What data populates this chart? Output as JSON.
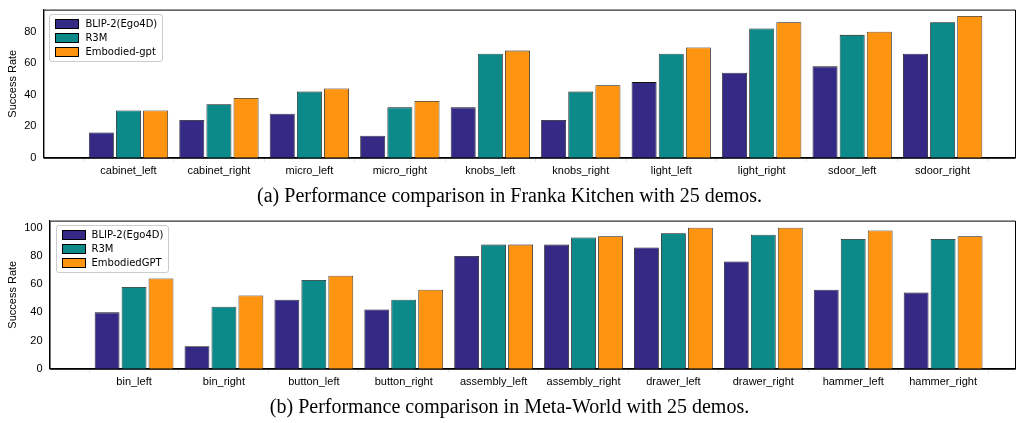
{
  "chart_data": [
    {
      "type": "bar",
      "title": "(a) Performance comparison in Franka Kitchen with 25 demos.",
      "ylabel": "Success Rate",
      "categories": [
        "cabinet_left",
        "cabinet_right",
        "micro_left",
        "micro_right",
        "knobs_left",
        "knobs_right",
        "light_left",
        "light_right",
        "sdoor_left",
        "sdoor_right"
      ],
      "series": [
        {
          "name": "BLIP-2(Ego4D)",
          "color": "#342a85",
          "values": [
            16,
            24,
            28,
            14,
            32,
            24,
            48,
            54,
            58,
            66
          ]
        },
        {
          "name": "R3M",
          "color": "#0c8a8a",
          "values": [
            30,
            34,
            42,
            32,
            66,
            42,
            66,
            82,
            78,
            86
          ]
        },
        {
          "name": "Embodied-gpt",
          "color": "#ff9410",
          "values": [
            30,
            38,
            44,
            36,
            68,
            46,
            70,
            86,
            80,
            90
          ]
        }
      ],
      "ylim": [
        0,
        94
      ],
      "yticks": [
        0,
        20,
        40,
        60,
        80
      ],
      "grid": false,
      "legend": "top left"
    },
    {
      "type": "bar",
      "title": "(b) Performance comparison in Meta-World with 25 demos.",
      "ylabel": "Success Rate",
      "categories": [
        "bin_left",
        "bin_right",
        "button_left",
        "button_right",
        "assembly_left",
        "assembly_right",
        "drawer_left",
        "drawer_right",
        "hammer_left",
        "hammer_right"
      ],
      "series": [
        {
          "name": "BLIP-2(Ego4D)",
          "color": "#342a85",
          "values": [
            40,
            16,
            49,
            42,
            80,
            88,
            86,
            76,
            56,
            54
          ]
        },
        {
          "name": "R3M",
          "color": "#0c8a8a",
          "values": [
            58,
            44,
            63,
            49,
            88,
            93,
            96,
            95,
            92,
            92
          ]
        },
        {
          "name": "EmbodiedGPT",
          "color": "#ff9410",
          "values": [
            64,
            52,
            66,
            56,
            88,
            94,
            100,
            100,
            98,
            94
          ]
        }
      ],
      "ylim": [
        0,
        105
      ],
      "yticks": [
        0,
        20,
        40,
        60,
        80,
        100
      ],
      "grid": false,
      "legend": "top left"
    }
  ]
}
